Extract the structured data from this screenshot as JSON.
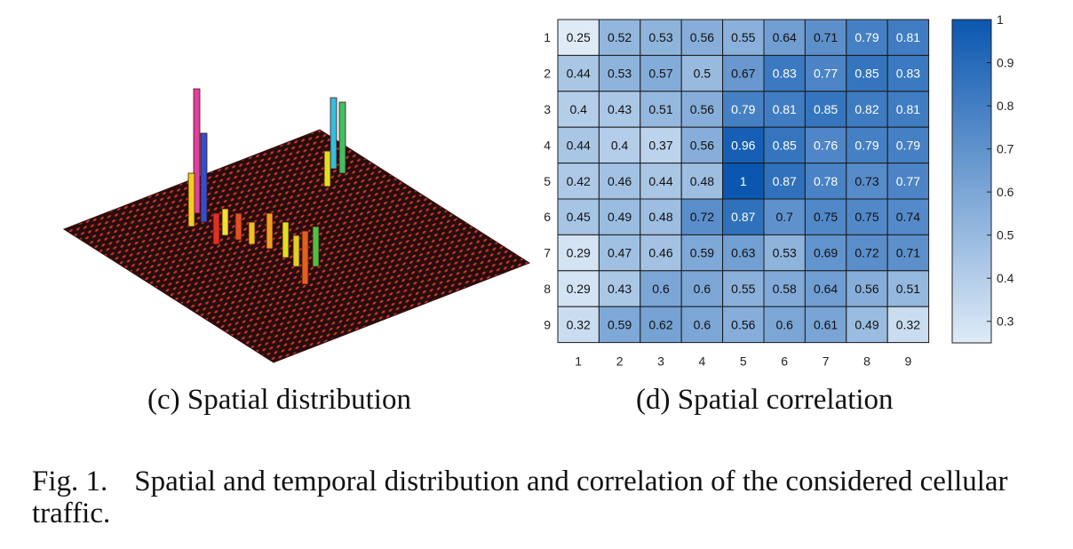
{
  "panels": {
    "left_caption": "(c) Spatial distribution",
    "right_caption": "(d) Spatial correlation"
  },
  "figure_caption": {
    "label": "Fig. 1.",
    "text": "Spatial and temporal distribution and correlation of the considered cellular traffic."
  },
  "colors": {
    "heatmap_low": "#deebf7",
    "heatmap_high": "#0b57b0",
    "surface_base": "#2a0c0c",
    "surface_dots": "#c0392b",
    "text_dark_cell": "#111111",
    "text_light_cell": "#ffffff"
  },
  "chart_data": [
    {
      "type": "surface3d",
      "title": "",
      "xlabel": "",
      "ylabel": "",
      "grid": false,
      "colormap": "hsv",
      "notes": "3D bar surface on a dark grid; several tall spikes"
    },
    {
      "type": "heatmap",
      "title": "",
      "xlabel": "",
      "ylabel": "",
      "x_categories": [
        "1",
        "2",
        "3",
        "4",
        "5",
        "6",
        "7",
        "8",
        "9"
      ],
      "y_categories": [
        "1",
        "2",
        "3",
        "4",
        "5",
        "6",
        "7",
        "8",
        "9"
      ],
      "values": [
        [
          0.25,
          0.52,
          0.53,
          0.56,
          0.55,
          0.64,
          0.71,
          0.79,
          0.81
        ],
        [
          0.44,
          0.53,
          0.57,
          0.5,
          0.67,
          0.83,
          0.77,
          0.85,
          0.83
        ],
        [
          0.4,
          0.43,
          0.51,
          0.56,
          0.79,
          0.81,
          0.85,
          0.82,
          0.81
        ],
        [
          0.44,
          0.4,
          0.37,
          0.56,
          0.96,
          0.85,
          0.76,
          0.79,
          0.79
        ],
        [
          0.42,
          0.46,
          0.44,
          0.48,
          1,
          0.87,
          0.78,
          0.73,
          0.77
        ],
        [
          0.45,
          0.49,
          0.48,
          0.72,
          0.87,
          0.7,
          0.75,
          0.75,
          0.74
        ],
        [
          0.29,
          0.47,
          0.46,
          0.59,
          0.63,
          0.53,
          0.69,
          0.72,
          0.71
        ],
        [
          0.29,
          0.43,
          0.6,
          0.6,
          0.55,
          0.58,
          0.64,
          0.56,
          0.51
        ],
        [
          0.32,
          0.59,
          0.62,
          0.6,
          0.56,
          0.6,
          0.61,
          0.49,
          0.32
        ]
      ],
      "colorbar": {
        "range": [
          0.25,
          1
        ],
        "ticks": [
          "0.3",
          "0.4",
          "0.5",
          "0.6",
          "0.7",
          "0.8",
          "0.9",
          "1"
        ],
        "tick_values": [
          0.3,
          0.4,
          0.5,
          0.6,
          0.7,
          0.8,
          0.9,
          1
        ],
        "placement": "right"
      }
    }
  ]
}
